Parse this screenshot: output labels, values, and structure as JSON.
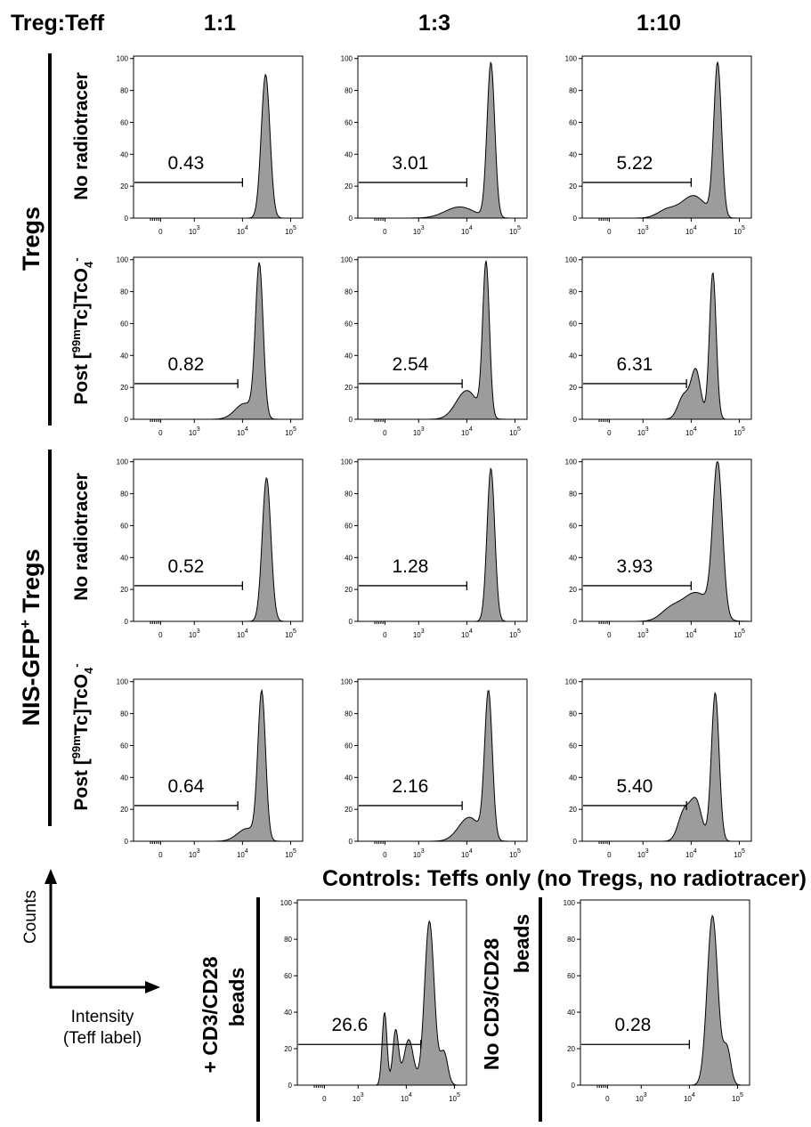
{
  "header": {
    "ratio_label": "Treg:Teff",
    "columns": [
      "1:1",
      "1:3",
      "1:10"
    ]
  },
  "groups": [
    {
      "label": "Tregs"
    },
    {
      "label": "NIS-GFP",
      "label_sup": "+",
      "label_suffix": " Tregs"
    }
  ],
  "row_labels": {
    "no_radiotracer": "No radiotracer",
    "post_prefix": "Post [",
    "post_sup": "99m",
    "post_mid": "Tc]TcO",
    "post_sub": "4",
    "post_charge": "-"
  },
  "axis": {
    "y_ticks": [
      "0",
      "20",
      "40",
      "60",
      "80",
      "100"
    ],
    "x_ticks": [
      "0",
      "10",
      "10",
      "10"
    ],
    "x_tick_exponents": [
      "",
      "3",
      "4",
      "5"
    ]
  },
  "legend_axes": {
    "y_label": "Counts",
    "x_label_line1": "Intensity",
    "x_label_line2": "(Teff label)"
  },
  "controls": {
    "title": "Controls: Teffs only (no Tregs, no radiotracer)",
    "left_label_line1": "+ CD3/CD28",
    "left_label_line2": "beads",
    "right_label_line1": "No CD3/CD28",
    "right_label_line2": "beads"
  },
  "chart_data": [
    {
      "type": "area",
      "row": "Tregs / No radiotracer",
      "column": "1:1",
      "gate_value": "0.43",
      "gate_range": [
        -100,
        10000
      ],
      "peaks": [
        {
          "x": 4.48,
          "h": 90,
          "w": 0.09
        }
      ]
    },
    {
      "type": "area",
      "row": "Tregs / No radiotracer",
      "column": "1:3",
      "gate_value": "3.01",
      "gate_range": [
        -100,
        10000
      ],
      "peaks": [
        {
          "x": 4.5,
          "h": 97,
          "w": 0.08
        },
        {
          "x": 3.85,
          "h": 7,
          "w": 0.3
        }
      ]
    },
    {
      "type": "area",
      "row": "Tregs / No radiotracer",
      "column": "1:10",
      "gate_value": "5.22",
      "gate_range": [
        -100,
        10000
      ],
      "peaks": [
        {
          "x": 4.55,
          "h": 96,
          "w": 0.08
        },
        {
          "x": 4.05,
          "h": 14,
          "w": 0.25
        },
        {
          "x": 3.5,
          "h": 5,
          "w": 0.2
        }
      ]
    },
    {
      "type": "area",
      "row": "Tregs / Post radiotracer",
      "column": "1:1",
      "gate_value": "0.82",
      "gate_range": [
        -100,
        8000
      ],
      "peaks": [
        {
          "x": 4.35,
          "h": 95,
          "w": 0.08
        },
        {
          "x": 4.05,
          "h": 10,
          "w": 0.2
        }
      ]
    },
    {
      "type": "area",
      "row": "Tregs / Post radiotracer",
      "column": "1:3",
      "gate_value": "2.54",
      "gate_range": [
        -100,
        8000
      ],
      "peaks": [
        {
          "x": 4.4,
          "h": 96,
          "w": 0.07
        },
        {
          "x": 4.0,
          "h": 18,
          "w": 0.22
        }
      ]
    },
    {
      "type": "area",
      "row": "Tregs / Post radiotracer",
      "column": "1:10",
      "gate_value": "6.31",
      "gate_range": [
        -100,
        8000
      ],
      "peaks": [
        {
          "x": 4.45,
          "h": 92,
          "w": 0.07
        },
        {
          "x": 4.1,
          "h": 30,
          "w": 0.1
        },
        {
          "x": 3.85,
          "h": 15,
          "w": 0.12
        }
      ]
    },
    {
      "type": "area",
      "row": "NIS-GFP+ Tregs / No radiotracer",
      "column": "1:1",
      "gate_value": "0.52",
      "gate_range": [
        -100,
        10000
      ],
      "peaks": [
        {
          "x": 4.5,
          "h": 90,
          "w": 0.09
        }
      ]
    },
    {
      "type": "area",
      "row": "NIS-GFP+ Tregs / No radiotracer",
      "column": "1:3",
      "gate_value": "1.28",
      "gate_range": [
        -100,
        10000
      ],
      "peaks": [
        {
          "x": 4.5,
          "h": 96,
          "w": 0.08
        }
      ]
    },
    {
      "type": "area",
      "row": "NIS-GFP+ Tregs / No radiotracer",
      "column": "1:10",
      "gate_value": "3.93",
      "gate_range": [
        -100,
        10000
      ],
      "peaks": [
        {
          "x": 4.55,
          "h": 95,
          "w": 0.1
        },
        {
          "x": 4.1,
          "h": 18,
          "w": 0.3
        },
        {
          "x": 3.55,
          "h": 6,
          "w": 0.2
        }
      ]
    },
    {
      "type": "area",
      "row": "NIS-GFP+ Tregs / Post radiotracer",
      "column": "1:1",
      "gate_value": "0.64",
      "gate_range": [
        -100,
        8000
      ],
      "peaks": [
        {
          "x": 4.4,
          "h": 92,
          "w": 0.08
        },
        {
          "x": 4.1,
          "h": 8,
          "w": 0.2
        }
      ]
    },
    {
      "type": "area",
      "row": "NIS-GFP+ Tregs / Post radiotracer",
      "column": "1:3",
      "gate_value": "2.16",
      "gate_range": [
        -100,
        8000
      ],
      "peaks": [
        {
          "x": 4.45,
          "h": 92,
          "w": 0.08
        },
        {
          "x": 4.05,
          "h": 15,
          "w": 0.22
        }
      ]
    },
    {
      "type": "area",
      "row": "NIS-GFP+ Tregs / Post radiotracer",
      "column": "1:10",
      "gate_value": "5.40",
      "gate_range": [
        -100,
        8000
      ],
      "peaks": [
        {
          "x": 4.5,
          "h": 93,
          "w": 0.08
        },
        {
          "x": 4.1,
          "h": 25,
          "w": 0.12
        },
        {
          "x": 3.85,
          "h": 18,
          "w": 0.12
        }
      ]
    },
    {
      "type": "area",
      "row": "Controls / + CD3/CD28 beads",
      "column": "",
      "gate_value": "26.6",
      "gate_range": [
        -100,
        20000
      ],
      "peaks": [
        {
          "x": 4.48,
          "h": 90,
          "w": 0.1
        },
        {
          "x": 4.78,
          "h": 18,
          "w": 0.08
        },
        {
          "x": 3.55,
          "h": 40,
          "w": 0.05
        },
        {
          "x": 3.78,
          "h": 30,
          "w": 0.06
        },
        {
          "x": 4.05,
          "h": 25,
          "w": 0.1
        }
      ]
    },
    {
      "type": "area",
      "row": "Controls / No CD3/CD28 beads",
      "column": "",
      "gate_value": "0.28",
      "gate_range": [
        -100,
        10000
      ],
      "peaks": [
        {
          "x": 4.48,
          "h": 93,
          "w": 0.11
        },
        {
          "x": 4.78,
          "h": 20,
          "w": 0.08
        }
      ]
    }
  ]
}
